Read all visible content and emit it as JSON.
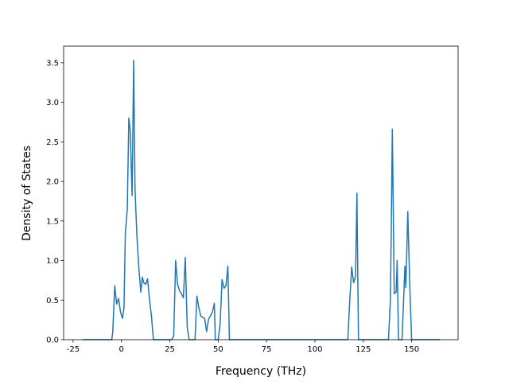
{
  "chart_data": {
    "type": "line",
    "xlabel": "Frequency (THz)",
    "ylabel": "Density of States",
    "x": [
      -20,
      -5,
      -4.5,
      -3.5,
      -2.5,
      -1.5,
      -0.5,
      0.5,
      1.3,
      2,
      3,
      3.8,
      4.5,
      5.5,
      6.3,
      7,
      8,
      9,
      10,
      10.8,
      11.5,
      12.5,
      13.5,
      14.5,
      15.5,
      16.5,
      26,
      27,
      28,
      29,
      30,
      31,
      32,
      33,
      34,
      35,
      38,
      39,
      40,
      41,
      42,
      43,
      44,
      45,
      46,
      47,
      48,
      48.5,
      50,
      51,
      52,
      53,
      54,
      55,
      55.8,
      117,
      118,
      119,
      120,
      121,
      121.7,
      122.5,
      138,
      139,
      139.5,
      140,
      141,
      142,
      142.5,
      143.2,
      145,
      146,
      146.5,
      147,
      148,
      149,
      150,
      164.5
    ],
    "series": [
      {
        "color": "#1f77b4",
        "values": [
          0,
          0,
          0.1,
          0.68,
          0.45,
          0.52,
          0.35,
          0.27,
          0.4,
          1.35,
          1.65,
          2.8,
          2.65,
          1.82,
          3.53,
          1.9,
          1.3,
          0.9,
          0.6,
          0.79,
          0.72,
          0.7,
          0.77,
          0.5,
          0.3,
          0,
          0,
          0.05,
          1.0,
          0.7,
          0.62,
          0.58,
          0.53,
          1.04,
          0.15,
          0,
          0,
          0.55,
          0.4,
          0.3,
          0.28,
          0.27,
          0.1,
          0.26,
          0.3,
          0.35,
          0.46,
          0,
          0,
          0.2,
          0.76,
          0.65,
          0.68,
          0.93,
          0,
          0,
          0.5,
          0.92,
          0.72,
          0.8,
          1.85,
          0,
          0,
          0.5,
          1.5,
          2.66,
          0.58,
          0.6,
          1.0,
          0,
          0,
          0.6,
          0.93,
          0.66,
          1.62,
          0.7,
          0,
          0
        ]
      }
    ],
    "xlim": [
      -29.9,
      174
    ],
    "ylim": [
      0,
      3.71
    ],
    "xticks": [
      -25,
      0,
      25,
      50,
      75,
      100,
      125,
      150
    ],
    "yticks": [
      {
        "value": 0,
        "label": "0.0"
      },
      {
        "value": 0.5,
        "label": "0.5"
      },
      {
        "value": 1,
        "label": "1.0"
      },
      {
        "value": 1.5,
        "label": "1.5"
      },
      {
        "value": 2,
        "label": "2.0"
      },
      {
        "value": 2.5,
        "label": "2.5"
      },
      {
        "value": 3,
        "label": "3.0"
      },
      {
        "value": 3.5,
        "label": "3.5"
      }
    ]
  }
}
